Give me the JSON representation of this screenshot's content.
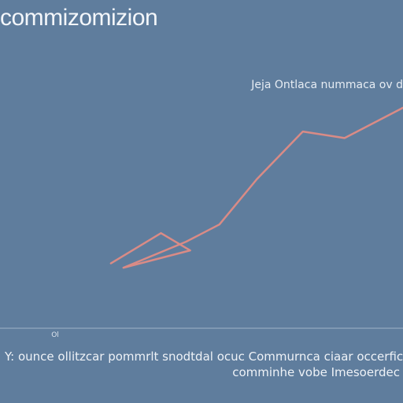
{
  "title": "commizomizion",
  "subtitle": "Jeja Ontlaca nummaca ov d",
  "caption": {
    "line1": "Y: ounce ollitzcar pommrlt snodtdal ocuc Commurnca ciaar occerfic",
    "line2": "comminhe vobe Imesoerdec"
  },
  "chart_data": {
    "type": "line",
    "title": "commizomizion",
    "subtitle": "Jeja Ontlaca nummaca ov d",
    "xlabel": "",
    "ylabel": "",
    "x_ticks": [
      "Ol",
      "",
      "",
      ""
    ],
    "series": [
      {
        "color": "#d98b86",
        "points": [
          {
            "x": 0.0,
            "y": 1.0
          },
          {
            "x": 1.2,
            "y": 2.4
          },
          {
            "x": 1.9,
            "y": 1.6
          },
          {
            "x": 0.3,
            "y": 0.8
          },
          {
            "x": 1.8,
            "y": 2.0
          },
          {
            "x": 2.6,
            "y": 2.8
          },
          {
            "x": 3.5,
            "y": 4.9
          },
          {
            "x": 4.6,
            "y": 7.1
          },
          {
            "x": 5.6,
            "y": 6.8
          },
          {
            "x": 6.2,
            "y": 7.4
          },
          {
            "x": 7.0,
            "y": 8.2
          }
        ]
      }
    ],
    "xlim": [
      -0.3,
      7.0
    ],
    "ylim": [
      -2.0,
      11.0
    ],
    "grid": false,
    "baseline_color": "#9fb3c8"
  }
}
